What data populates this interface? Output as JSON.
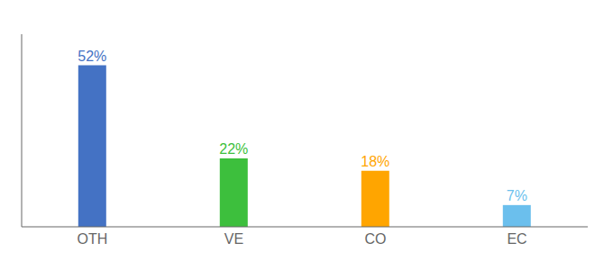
{
  "chart_data": {
    "type": "bar",
    "categories": [
      "OTH",
      "VE",
      "CO",
      "EC"
    ],
    "values": [
      52,
      22,
      18,
      7
    ],
    "value_labels": [
      "52%",
      "22%",
      "18%",
      "7%"
    ],
    "colors": [
      "#4472C4",
      "#3DBF3D",
      "#FFA500",
      "#6BBFED"
    ],
    "ylim": [
      0,
      62
    ],
    "data_labels": true,
    "tick_labels": "x",
    "grid": false
  }
}
